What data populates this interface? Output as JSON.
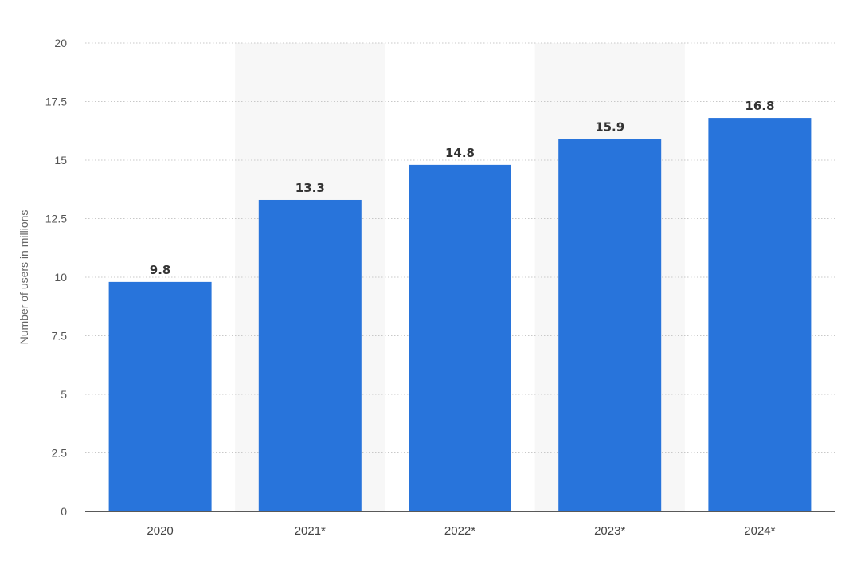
{
  "chart_data": {
    "type": "bar",
    "categories": [
      "2020",
      "2021*",
      "2022*",
      "2023*",
      "2024*"
    ],
    "values": [
      9.8,
      13.3,
      14.8,
      15.9,
      16.8
    ],
    "data_labels": [
      "9.8",
      "13.3",
      "14.8",
      "15.9",
      "16.8"
    ],
    "title": "",
    "xlabel": "",
    "ylabel": "Number of users in millions",
    "ylim": [
      0,
      20
    ],
    "yticks": [
      0,
      2.5,
      5,
      7.5,
      10,
      12.5,
      15,
      17.5,
      20
    ],
    "ytick_labels": [
      "0",
      "2.5",
      "5",
      "7.5",
      "10",
      "12.5",
      "15",
      "17.5",
      "20"
    ],
    "grid": true,
    "legend": "none",
    "bar_color": "#2874db",
    "shaded_band_color": "#f7f7f7"
  }
}
